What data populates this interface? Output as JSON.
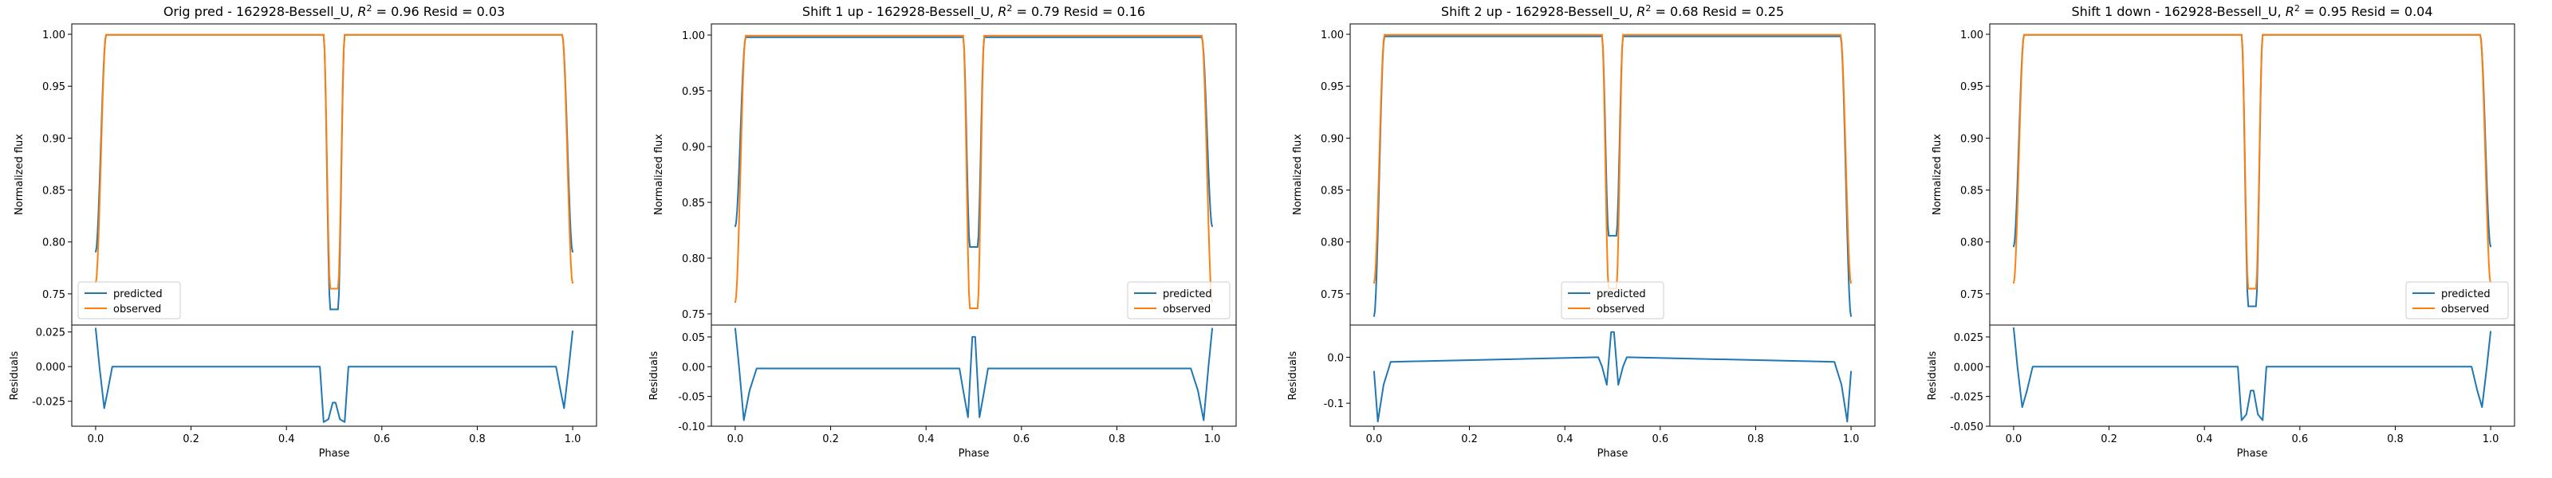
{
  "figure": {
    "x_axis_label": "Phase",
    "top_y_label": "Normalized flux",
    "bottom_y_label": "Residuals",
    "colors": {
      "predicted": "#1f77b4",
      "observed": "#ff7f0e"
    }
  },
  "chart_data": [
    {
      "type": "line",
      "title_prefix": "Orig pred - 162928-Bessell_U, ",
      "title_r2": "= 0.96",
      "title_suffix": " Resid = 0.03",
      "xlabel": "Phase",
      "ylabel": "Normalized flux",
      "xlim": [
        -0.05,
        1.05
      ],
      "ylim": [
        0.72,
        1.01
      ],
      "x_ticks": [
        "0.0",
        "0.2",
        "0.4",
        "0.6",
        "0.8",
        "1.0"
      ],
      "y_ticks": [
        "0.75",
        "0.80",
        "0.85",
        "0.90",
        "0.95",
        "1.00"
      ],
      "legend": {
        "placement": "lower-left",
        "entries": [
          "predicted",
          "observed"
        ]
      },
      "predicted": {
        "edge": 0.79,
        "primary_min": 0.735,
        "secondary_min": 0.735,
        "plateau": 0.9995
      },
      "observed": {
        "edge": 0.76,
        "primary_min": 0.755,
        "secondary_min": 0.755,
        "plateau": 0.9995
      },
      "residuals": {
        "ylabel": "Residuals",
        "ylim": [
          -0.043,
          0.03
        ],
        "y_ticks": [
          "0.025",
          "0.000",
          "-0.025"
        ],
        "points": [
          [
            0.0,
            0.028
          ],
          [
            0.008,
            0.0
          ],
          [
            0.018,
            -0.03
          ],
          [
            0.025,
            -0.018
          ],
          [
            0.035,
            0.0
          ],
          [
            0.47,
            0.0
          ],
          [
            0.478,
            -0.04
          ],
          [
            0.488,
            -0.038
          ],
          [
            0.497,
            -0.026
          ],
          [
            0.503,
            -0.026
          ],
          [
            0.512,
            -0.038
          ],
          [
            0.522,
            -0.04
          ],
          [
            0.53,
            0.0
          ],
          [
            0.965,
            0.0
          ],
          [
            0.975,
            -0.018
          ],
          [
            0.982,
            -0.03
          ],
          [
            0.992,
            0.0
          ],
          [
            1.0,
            0.026
          ]
        ]
      }
    },
    {
      "type": "line",
      "title_prefix": "Shift 1 up - 162928-Bessell_U, ",
      "title_r2": "= 0.79",
      "title_suffix": " Resid = 0.16",
      "xlabel": "Phase",
      "ylabel": "Normalized flux",
      "xlim": [
        -0.05,
        1.05
      ],
      "ylim": [
        0.74,
        1.01
      ],
      "x_ticks": [
        "0.0",
        "0.2",
        "0.4",
        "0.6",
        "0.8",
        "1.0"
      ],
      "y_ticks": [
        "0.75",
        "0.80",
        "0.85",
        "0.90",
        "0.95",
        "1.00"
      ],
      "legend": {
        "placement": "lower-right",
        "entries": [
          "predicted",
          "observed"
        ]
      },
      "predicted": {
        "edge": 0.828,
        "primary_min": 0.81,
        "secondary_min": 0.81,
        "plateau": 0.998
      },
      "observed": {
        "edge": 0.76,
        "primary_min": 0.755,
        "secondary_min": 0.755,
        "plateau": 0.9995
      },
      "residuals": {
        "ylabel": "Residuals",
        "ylim": [
          -0.1,
          0.07
        ],
        "y_ticks": [
          "0.05",
          "0.00",
          "-0.05",
          "-0.10"
        ],
        "points": [
          [
            0.0,
            0.065
          ],
          [
            0.008,
            0.0
          ],
          [
            0.018,
            -0.09
          ],
          [
            0.03,
            -0.04
          ],
          [
            0.045,
            -0.003
          ],
          [
            0.47,
            -0.003
          ],
          [
            0.478,
            -0.04
          ],
          [
            0.488,
            -0.085
          ],
          [
            0.497,
            0.05
          ],
          [
            0.503,
            0.05
          ],
          [
            0.512,
            -0.085
          ],
          [
            0.522,
            -0.04
          ],
          [
            0.53,
            -0.003
          ],
          [
            0.955,
            -0.003
          ],
          [
            0.97,
            -0.04
          ],
          [
            0.982,
            -0.09
          ],
          [
            0.992,
            0.0
          ],
          [
            1.0,
            0.065
          ]
        ]
      }
    },
    {
      "type": "line",
      "title_prefix": "Shift 2 up - 162928-Bessell_U, ",
      "title_r2": "= 0.68",
      "title_suffix": " Resid = 0.25",
      "xlabel": "Phase",
      "ylabel": "Normalized flux",
      "xlim": [
        -0.05,
        1.05
      ],
      "ylim": [
        0.72,
        1.01
      ],
      "x_ticks": [
        "0.0",
        "0.2",
        "0.4",
        "0.6",
        "0.8",
        "1.0"
      ],
      "y_ticks": [
        "0.75",
        "0.80",
        "0.85",
        "0.90",
        "0.95",
        "1.00"
      ],
      "legend": {
        "placement": "lower-center",
        "entries": [
          "predicted",
          "observed"
        ]
      },
      "predicted": {
        "edge": 0.728,
        "primary_min": 0.806,
        "secondary_min": 0.806,
        "plateau": 0.998
      },
      "observed": {
        "edge": 0.76,
        "primary_min": 0.755,
        "secondary_min": 0.755,
        "plateau": 0.9995
      },
      "residuals": {
        "ylabel": "Residuals",
        "ylim": [
          -0.15,
          0.07
        ],
        "y_ticks": [
          "0.0",
          "-0.1"
        ],
        "points": [
          [
            0.0,
            -0.03
          ],
          [
            0.008,
            -0.14
          ],
          [
            0.02,
            -0.06
          ],
          [
            0.035,
            -0.01
          ],
          [
            0.47,
            0.0
          ],
          [
            0.478,
            -0.02
          ],
          [
            0.488,
            -0.06
          ],
          [
            0.497,
            0.055
          ],
          [
            0.503,
            0.055
          ],
          [
            0.512,
            -0.06
          ],
          [
            0.522,
            -0.02
          ],
          [
            0.53,
            0.0
          ],
          [
            0.965,
            -0.01
          ],
          [
            0.98,
            -0.06
          ],
          [
            0.992,
            -0.14
          ],
          [
            1.0,
            -0.03
          ]
        ]
      }
    },
    {
      "type": "line",
      "title_prefix": "Shift 1 down - 162928-Bessell_U, ",
      "title_r2": "= 0.95",
      "title_suffix": " Resid = 0.04",
      "xlabel": "Phase",
      "ylabel": "Normalized flux",
      "xlim": [
        -0.05,
        1.05
      ],
      "ylim": [
        0.72,
        1.01
      ],
      "x_ticks": [
        "0.0",
        "0.2",
        "0.4",
        "0.6",
        "0.8",
        "1.0"
      ],
      "y_ticks": [
        "0.75",
        "0.80",
        "0.85",
        "0.90",
        "0.95",
        "1.00"
      ],
      "legend": {
        "placement": "lower-right",
        "entries": [
          "predicted",
          "observed"
        ]
      },
      "predicted": {
        "edge": 0.795,
        "primary_min": 0.738,
        "secondary_min": 0.738,
        "plateau": 0.9995
      },
      "observed": {
        "edge": 0.76,
        "primary_min": 0.755,
        "secondary_min": 0.755,
        "plateau": 0.9995
      },
      "residuals": {
        "ylabel": "Residuals",
        "ylim": [
          -0.05,
          0.035
        ],
        "y_ticks": [
          "0.025",
          "0.000",
          "-0.025",
          "-0.050"
        ],
        "points": [
          [
            0.0,
            0.033
          ],
          [
            0.008,
            0.0
          ],
          [
            0.018,
            -0.034
          ],
          [
            0.028,
            -0.02
          ],
          [
            0.04,
            0.0
          ],
          [
            0.47,
            0.0
          ],
          [
            0.478,
            -0.045
          ],
          [
            0.488,
            -0.04
          ],
          [
            0.497,
            -0.02
          ],
          [
            0.503,
            -0.02
          ],
          [
            0.512,
            -0.04
          ],
          [
            0.522,
            -0.045
          ],
          [
            0.53,
            0.0
          ],
          [
            0.96,
            0.0
          ],
          [
            0.972,
            -0.02
          ],
          [
            0.982,
            -0.034
          ],
          [
            0.992,
            0.0
          ],
          [
            1.0,
            0.03
          ]
        ]
      }
    }
  ]
}
